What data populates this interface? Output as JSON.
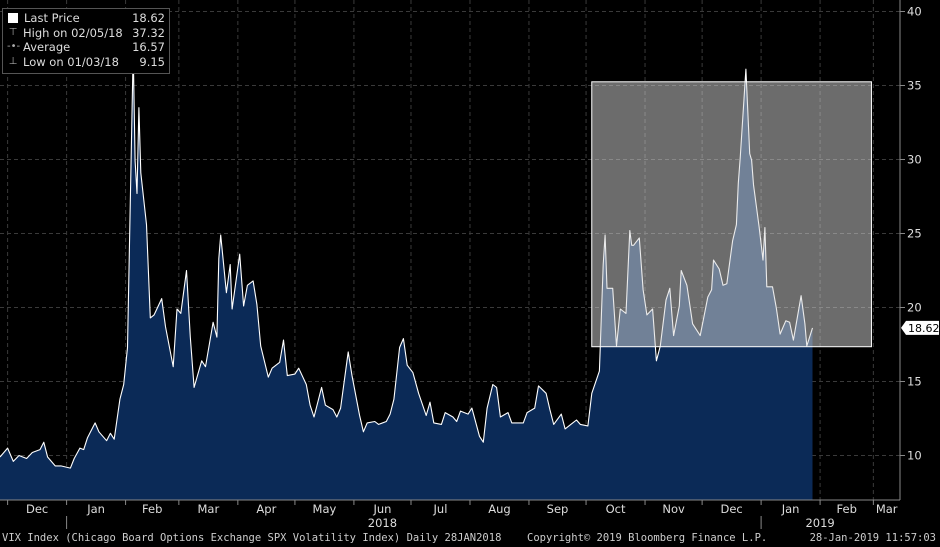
{
  "chart_data": {
    "type": "area",
    "title": "",
    "ylim": [
      7,
      41
    ],
    "y_ticks": [
      10,
      15,
      20,
      25,
      30,
      35,
      40
    ],
    "grid": true,
    "x_ticks": [
      {
        "label": "Dec",
        "date": "2017-12-01"
      },
      {
        "label": "Jan",
        "date": "2018-01-01"
      },
      {
        "label": "Feb",
        "date": "2018-02-01"
      },
      {
        "label": "Mar",
        "date": "2018-03-01"
      },
      {
        "label": "Apr",
        "date": "2018-04-01"
      },
      {
        "label": "May",
        "date": "2018-05-01"
      },
      {
        "label": "Jun",
        "date": "2018-06-01"
      },
      {
        "label": "Jul",
        "date": "2018-07-01"
      },
      {
        "label": "Aug",
        "date": "2018-08-01"
      },
      {
        "label": "Sep",
        "date": "2018-09-01"
      },
      {
        "label": "Oct",
        "date": "2018-10-01"
      },
      {
        "label": "Nov",
        "date": "2018-11-01"
      },
      {
        "label": "Dec",
        "date": "2018-12-01"
      },
      {
        "label": "Jan",
        "date": "2019-01-01"
      },
      {
        "label": "Feb",
        "date": "2019-02-01"
      },
      {
        "label": "Mar",
        "date": "2019-03-01"
      }
    ],
    "year_labels": [
      {
        "label": "2018",
        "date": "2018-06-16"
      },
      {
        "label": "2019",
        "date": "2019-02-01"
      }
    ],
    "year_separators": [
      "2018-01-01",
      "2019-01-01"
    ],
    "x_range": [
      "2017-11-27",
      "2019-03-15"
    ],
    "series": [
      {
        "points": [
          [
            "2017-11-27",
            9.9
          ],
          [
            "2017-12-01",
            10.5
          ],
          [
            "2017-12-04",
            9.6
          ],
          [
            "2017-12-07",
            10.0
          ],
          [
            "2017-12-11",
            9.8
          ],
          [
            "2017-12-14",
            10.2
          ],
          [
            "2017-12-18",
            10.4
          ],
          [
            "2017-12-20",
            10.9
          ],
          [
            "2017-12-22",
            9.9
          ],
          [
            "2017-12-26",
            9.3
          ],
          [
            "2017-12-29",
            9.3
          ],
          [
            "2018-01-03",
            9.15
          ],
          [
            "2018-01-05",
            9.8
          ],
          [
            "2018-01-08",
            10.5
          ],
          [
            "2018-01-10",
            10.4
          ],
          [
            "2018-01-12",
            11.2
          ],
          [
            "2018-01-16",
            12.2
          ],
          [
            "2018-01-18",
            11.6
          ],
          [
            "2018-01-22",
            11.0
          ],
          [
            "2018-01-24",
            11.5
          ],
          [
            "2018-01-26",
            11.1
          ],
          [
            "2018-01-29",
            13.8
          ],
          [
            "2018-01-31",
            14.8
          ],
          [
            "2018-02-02",
            17.3
          ],
          [
            "2018-02-05",
            37.32
          ],
          [
            "2018-02-06",
            29.9
          ],
          [
            "2018-02-07",
            27.7
          ],
          [
            "2018-02-08",
            33.5
          ],
          [
            "2018-02-09",
            29.1
          ],
          [
            "2018-02-12",
            25.6
          ],
          [
            "2018-02-14",
            19.3
          ],
          [
            "2018-02-16",
            19.5
          ],
          [
            "2018-02-20",
            20.6
          ],
          [
            "2018-02-22",
            18.7
          ],
          [
            "2018-02-26",
            16.0
          ],
          [
            "2018-02-28",
            19.9
          ],
          [
            "2018-03-02",
            19.6
          ],
          [
            "2018-03-05",
            22.5
          ],
          [
            "2018-03-07",
            18.0
          ],
          [
            "2018-03-09",
            14.6
          ],
          [
            "2018-03-13",
            16.4
          ],
          [
            "2018-03-15",
            16.0
          ],
          [
            "2018-03-19",
            19.0
          ],
          [
            "2018-03-21",
            18.0
          ],
          [
            "2018-03-22",
            23.3
          ],
          [
            "2018-03-23",
            24.9
          ],
          [
            "2018-03-26",
            21.0
          ],
          [
            "2018-03-28",
            22.9
          ],
          [
            "2018-03-29",
            19.9
          ],
          [
            "2018-04-02",
            23.6
          ],
          [
            "2018-04-04",
            20.1
          ],
          [
            "2018-04-06",
            21.5
          ],
          [
            "2018-04-09",
            21.8
          ],
          [
            "2018-04-11",
            20.2
          ],
          [
            "2018-04-13",
            17.4
          ],
          [
            "2018-04-17",
            15.3
          ],
          [
            "2018-04-19",
            15.9
          ],
          [
            "2018-04-23",
            16.3
          ],
          [
            "2018-04-25",
            17.8
          ],
          [
            "2018-04-27",
            15.4
          ],
          [
            "2018-05-01",
            15.5
          ],
          [
            "2018-05-03",
            15.9
          ],
          [
            "2018-05-07",
            14.8
          ],
          [
            "2018-05-09",
            13.4
          ],
          [
            "2018-05-11",
            12.6
          ],
          [
            "2018-05-15",
            14.6
          ],
          [
            "2018-05-17",
            13.4
          ],
          [
            "2018-05-21",
            13.1
          ],
          [
            "2018-05-23",
            12.6
          ],
          [
            "2018-05-25",
            13.2
          ],
          [
            "2018-05-29",
            17.0
          ],
          [
            "2018-05-31",
            15.4
          ],
          [
            "2018-06-04",
            12.7
          ],
          [
            "2018-06-06",
            11.6
          ],
          [
            "2018-06-08",
            12.2
          ],
          [
            "2018-06-12",
            12.3
          ],
          [
            "2018-06-14",
            12.1
          ],
          [
            "2018-06-18",
            12.3
          ],
          [
            "2018-06-20",
            12.8
          ],
          [
            "2018-06-22",
            13.8
          ],
          [
            "2018-06-25",
            17.3
          ],
          [
            "2018-06-27",
            17.9
          ],
          [
            "2018-06-29",
            16.1
          ],
          [
            "2018-07-02",
            15.6
          ],
          [
            "2018-07-05",
            14.2
          ],
          [
            "2018-07-09",
            12.7
          ],
          [
            "2018-07-11",
            13.6
          ],
          [
            "2018-07-13",
            12.2
          ],
          [
            "2018-07-17",
            12.1
          ],
          [
            "2018-07-19",
            12.9
          ],
          [
            "2018-07-23",
            12.6
          ],
          [
            "2018-07-25",
            12.3
          ],
          [
            "2018-07-27",
            13.0
          ],
          [
            "2018-07-31",
            12.8
          ],
          [
            "2018-08-02",
            13.2
          ],
          [
            "2018-08-06",
            11.3
          ],
          [
            "2018-08-08",
            10.9
          ],
          [
            "2018-08-10",
            13.2
          ],
          [
            "2018-08-13",
            14.8
          ],
          [
            "2018-08-15",
            14.6
          ],
          [
            "2018-08-17",
            12.6
          ],
          [
            "2018-08-21",
            12.9
          ],
          [
            "2018-08-23",
            12.2
          ],
          [
            "2018-08-27",
            12.2
          ],
          [
            "2018-08-29",
            12.2
          ],
          [
            "2018-08-31",
            12.9
          ],
          [
            "2018-09-04",
            13.2
          ],
          [
            "2018-09-06",
            14.7
          ],
          [
            "2018-09-10",
            14.2
          ],
          [
            "2018-09-12",
            13.1
          ],
          [
            "2018-09-14",
            12.1
          ],
          [
            "2018-09-18",
            12.8
          ],
          [
            "2018-09-20",
            11.8
          ],
          [
            "2018-09-24",
            12.2
          ],
          [
            "2018-09-26",
            12.4
          ],
          [
            "2018-09-28",
            12.1
          ],
          [
            "2018-10-02",
            12.0
          ],
          [
            "2018-10-04",
            14.2
          ],
          [
            "2018-10-08",
            15.7
          ],
          [
            "2018-10-10",
            22.9
          ],
          [
            "2018-10-11",
            24.9
          ],
          [
            "2018-10-12",
            21.3
          ],
          [
            "2018-10-15",
            21.3
          ],
          [
            "2018-10-17",
            17.4
          ],
          [
            "2018-10-19",
            19.9
          ],
          [
            "2018-10-22",
            19.6
          ],
          [
            "2018-10-24",
            25.2
          ],
          [
            "2018-10-25",
            24.2
          ],
          [
            "2018-10-26",
            24.2
          ],
          [
            "2018-10-29",
            24.7
          ],
          [
            "2018-10-31",
            21.2
          ],
          [
            "2018-11-02",
            19.5
          ],
          [
            "2018-11-05",
            19.9
          ],
          [
            "2018-11-07",
            16.4
          ],
          [
            "2018-11-09",
            17.4
          ],
          [
            "2018-11-12",
            20.5
          ],
          [
            "2018-11-14",
            21.3
          ],
          [
            "2018-11-16",
            18.1
          ],
          [
            "2018-11-19",
            20.1
          ],
          [
            "2018-11-20",
            22.5
          ],
          [
            "2018-11-23",
            21.5
          ],
          [
            "2018-11-26",
            18.9
          ],
          [
            "2018-11-28",
            18.5
          ],
          [
            "2018-11-30",
            18.1
          ],
          [
            "2018-12-04",
            20.7
          ],
          [
            "2018-12-06",
            21.2
          ],
          [
            "2018-12-07",
            23.2
          ],
          [
            "2018-12-10",
            22.6
          ],
          [
            "2018-12-12",
            21.5
          ],
          [
            "2018-12-14",
            21.6
          ],
          [
            "2018-12-17",
            24.5
          ],
          [
            "2018-12-19",
            25.6
          ],
          [
            "2018-12-20",
            28.4
          ],
          [
            "2018-12-21",
            30.1
          ],
          [
            "2018-12-24",
            36.1
          ],
          [
            "2018-12-26",
            30.4
          ],
          [
            "2018-12-27",
            29.96
          ],
          [
            "2018-12-28",
            28.3
          ],
          [
            "2018-12-31",
            25.4
          ],
          [
            "2019-01-02",
            23.2
          ],
          [
            "2019-01-03",
            25.4
          ],
          [
            "2019-01-04",
            21.4
          ],
          [
            "2019-01-07",
            21.4
          ],
          [
            "2019-01-09",
            19.98
          ],
          [
            "2019-01-11",
            18.2
          ],
          [
            "2019-01-14",
            19.1
          ],
          [
            "2019-01-16",
            19.0
          ],
          [
            "2019-01-18",
            17.8
          ],
          [
            "2019-01-22",
            20.8
          ],
          [
            "2019-01-24",
            18.9
          ],
          [
            "2019-01-25",
            17.4
          ],
          [
            "2019-01-28",
            18.62
          ]
        ]
      }
    ],
    "highlight_box": {
      "x": [
        "2018-10-04",
        "2019-02-28"
      ],
      "y": [
        17.35,
        35.25
      ]
    },
    "last_price_tag": "18.62"
  },
  "legend": {
    "items": [
      {
        "label": "Last Price",
        "value": "18.62"
      },
      {
        "label": "High on 02/05/18",
        "value": "37.32"
      },
      {
        "label": "Average",
        "value": "16.57"
      },
      {
        "label": "Low on 01/03/18",
        "value": "9.15"
      }
    ]
  },
  "footer": {
    "description": "VIX Index (Chicago Board Options Exchange SPX Volatility Index)  Daily 28JAN2018",
    "copyright": "Copyright© 2019 Bloomberg Finance L.P.",
    "timestamp": "28-Jan-2019 11:57:03"
  },
  "colors": {
    "background": "#000000",
    "area_fill": "#0b2a57",
    "line": "#ffffff",
    "grid": "#3a3a3a",
    "highlight_box": "#d8d8d8"
  }
}
